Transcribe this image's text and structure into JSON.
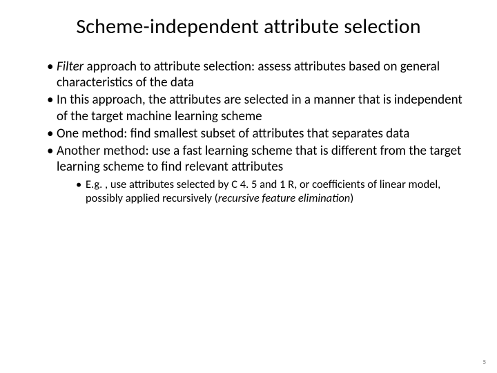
{
  "title": "Scheme-independent attribute selection",
  "bullets": [
    {
      "prefix_em": "Filter",
      "rest": " approach to attribute selection: assess attributes based on general characteristics of the data"
    },
    {
      "text": "In this approach, the attributes are selected in a manner that is independent of the target machine learning scheme"
    },
    {
      "text": "One method: find smallest subset of attributes that separates data"
    },
    {
      "text": "Another method: use a fast learning scheme that is different from the target learning scheme to find relevant attributes"
    }
  ],
  "sub": {
    "pre": "E.g. , use attributes selected by C 4. 5 and 1 R, or coefficients of linear model, possibly applied recursively (",
    "em": "recursive feature elimination",
    "post": ")"
  },
  "page_number": "5"
}
